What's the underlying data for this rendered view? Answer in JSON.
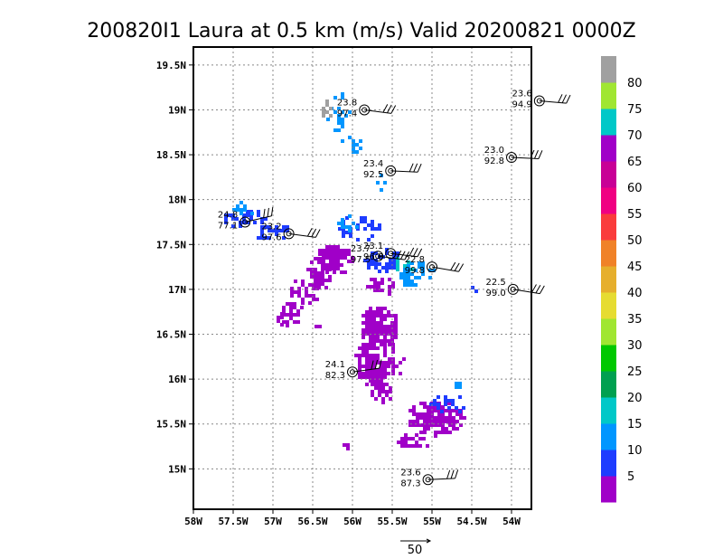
{
  "chart_data": {
    "type": "scatter",
    "title": "200820I1 Laura at 0.5 km (m/s) Valid 20200821 0000Z",
    "x_ticks": [
      "58W",
      "57.5W",
      "57W",
      "56.5W",
      "56W",
      "55.5W",
      "55W",
      "54.5W",
      "54W"
    ],
    "y_ticks": [
      "19.5N",
      "19N",
      "18.5N",
      "18N",
      "17.5N",
      "17N",
      "16.5N",
      "16N",
      "15.5N",
      "15N"
    ],
    "xlim": [
      -58,
      -53.75
    ],
    "ylim": [
      14.55,
      19.7
    ],
    "grid": true,
    "colorbar": {
      "labels": [
        "5",
        "10",
        "15",
        "20",
        "25",
        "30",
        "35",
        "40",
        "45",
        "50",
        "55",
        "60",
        "65",
        "70",
        "75",
        "80"
      ],
      "colors": [
        "#a000c8",
        "#1e3cff",
        "#0096ff",
        "#00c8c8",
        "#00a050",
        "#00c800",
        "#a0e632",
        "#e6dc32",
        "#e6af2d",
        "#f08228",
        "#fa3c3c",
        "#f00082",
        "#c80096",
        "#a000c8",
        "#00c8c8",
        "#a0e632",
        "#a0a0a0"
      ]
    },
    "observations": [
      {
        "lon": -55.85,
        "lat": 19.0,
        "speed": 23.8,
        "dir": 97.4
      },
      {
        "lon": -55.52,
        "lat": 18.32,
        "speed": 23.4,
        "dir": 92.5
      },
      {
        "lon": -53.65,
        "lat": 19.1,
        "speed": 23.6,
        "dir": 94.9
      },
      {
        "lon": -54.0,
        "lat": 18.47,
        "speed": 23.0,
        "dir": 92.8
      },
      {
        "lon": -57.35,
        "lat": 17.75,
        "speed": 24.8,
        "dir": 77.1
      },
      {
        "lon": -56.8,
        "lat": 17.62,
        "speed": 23.2,
        "dir": 97.6
      },
      {
        "lon": -55.68,
        "lat": 17.37,
        "speed": 23.7,
        "dir": 97.5
      },
      {
        "lon": -55.52,
        "lat": 17.4,
        "speed": 23.1,
        "dir": 96.8
      },
      {
        "lon": -55.0,
        "lat": 17.25,
        "speed": 22.8,
        "dir": 99.8
      },
      {
        "lon": -53.98,
        "lat": 17.0,
        "speed": 22.5,
        "dir": 99.0
      },
      {
        "lon": -56.0,
        "lat": 16.08,
        "speed": 24.1,
        "dir": 82.3
      },
      {
        "lon": -55.05,
        "lat": 14.88,
        "speed": 23.6,
        "dir": 87.3
      }
    ],
    "reference_vector_label": "50"
  }
}
